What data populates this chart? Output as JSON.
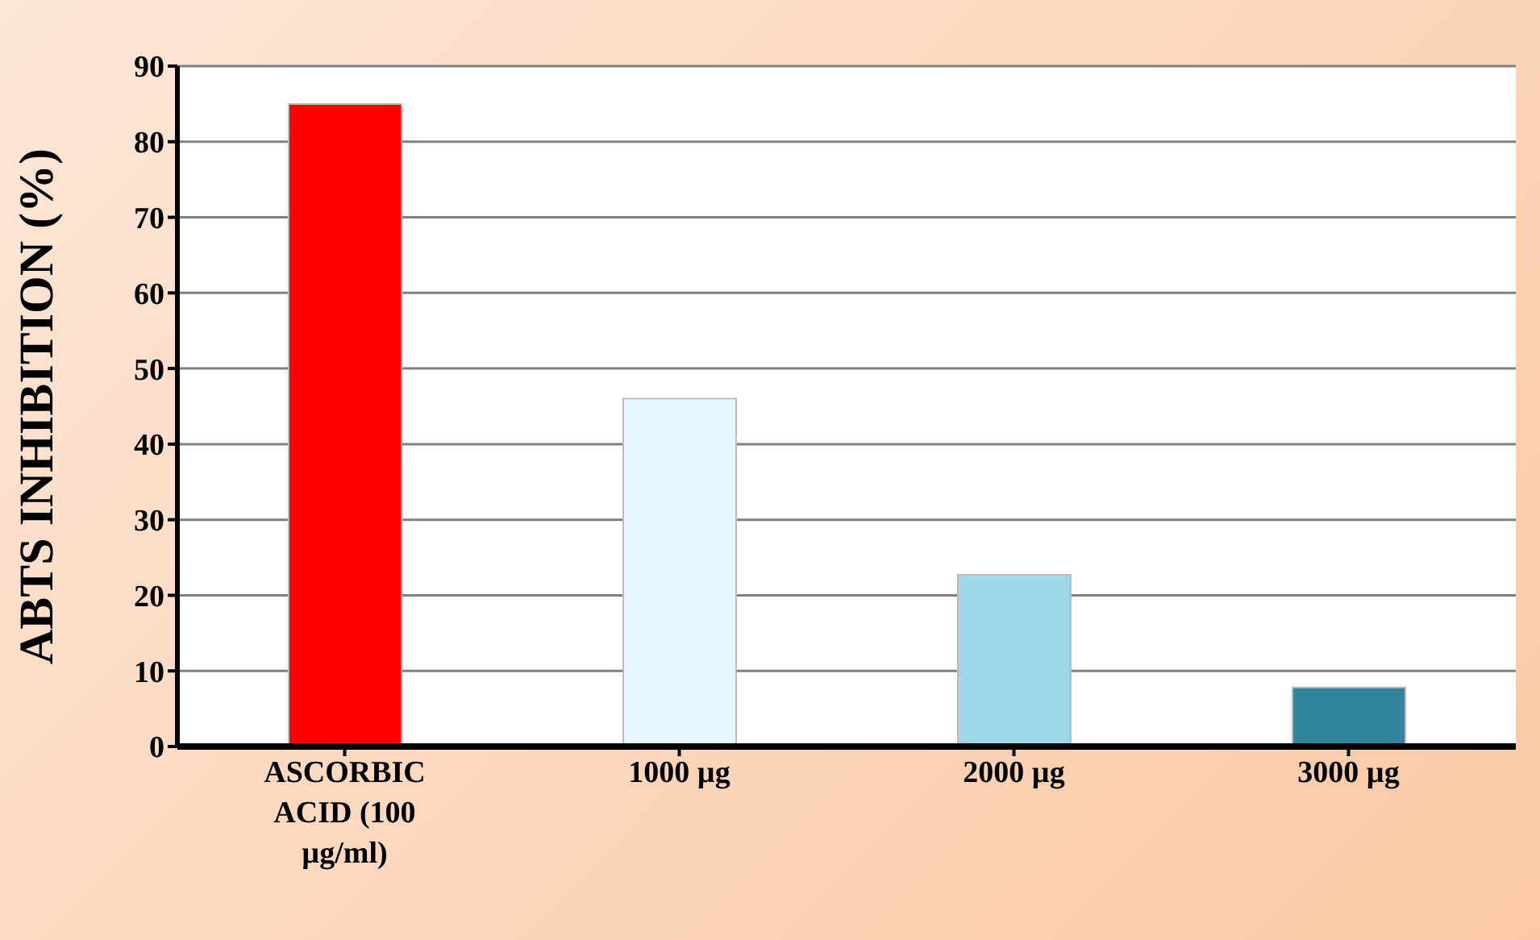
{
  "chart_data": {
    "type": "bar",
    "ylabel": "ABTS INHIBITION (%)",
    "categories": [
      "ASCORBIC ACID (100 µg/ml)",
      "1000 µg",
      "2000 µg",
      "3000 µg"
    ],
    "values": [
      85,
      46,
      22.7,
      7.8
    ],
    "colors": [
      "#ff0000",
      "#e5f7fd",
      "#9dd7e8",
      "#31859c"
    ],
    "ylim": [
      0,
      90
    ],
    "yticks": [
      0,
      10,
      20,
      30,
      40,
      50,
      60,
      70,
      80,
      90
    ],
    "grid": "y",
    "legend": false
  }
}
